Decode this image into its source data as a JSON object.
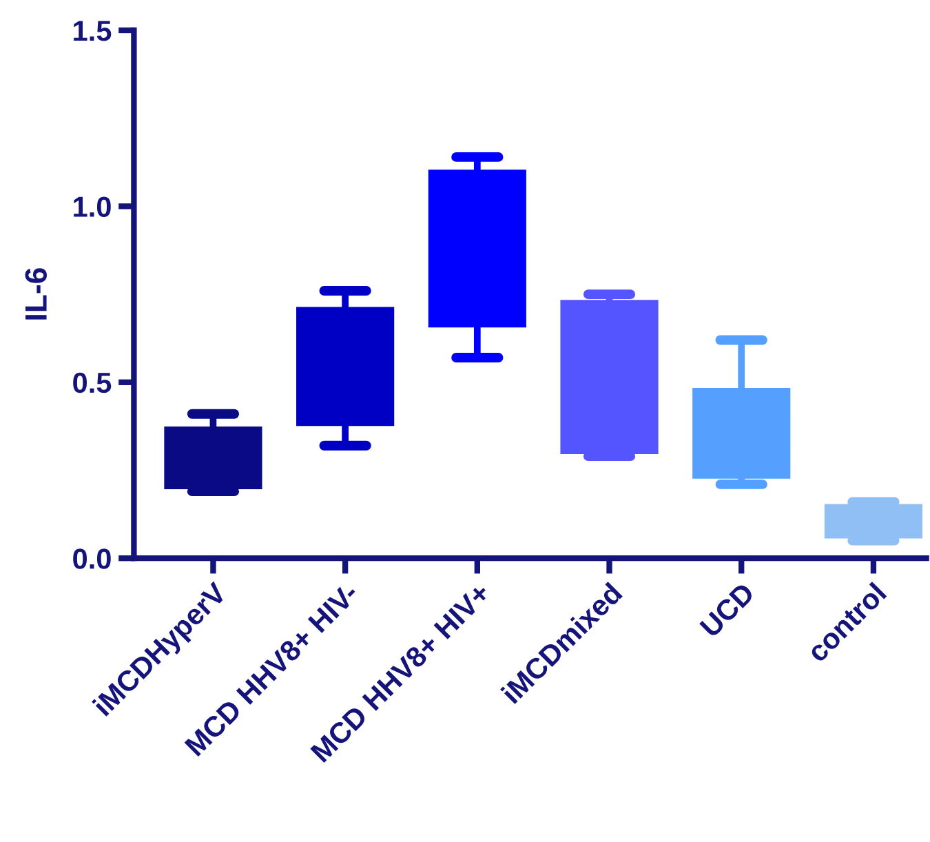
{
  "chart_data": {
    "type": "box",
    "ylabel": "IL-6",
    "categories": [
      "iMCDHyperV",
      "MCD HHV8+ HIV-",
      "MCD HHV8+ HIV+",
      "iMCDmixed",
      "UCD",
      "control"
    ],
    "colors": [
      "#0a0a85",
      "#0000c4",
      "#0000ff",
      "#5555ff",
      "#55a0ff",
      "#90bff5"
    ],
    "boxes": [
      {
        "low": 0.19,
        "q1": 0.2,
        "median": 0.28,
        "q3": 0.37,
        "high": 0.41
      },
      {
        "low": 0.32,
        "q1": 0.38,
        "median": 0.55,
        "q3": 0.71,
        "high": 0.76
      },
      {
        "low": 0.57,
        "q1": 0.66,
        "median": 0.88,
        "q3": 1.1,
        "high": 1.14
      },
      {
        "low": 0.29,
        "q1": 0.3,
        "median": 0.51,
        "q3": 0.73,
        "high": 0.75
      },
      {
        "low": 0.21,
        "q1": 0.23,
        "median": 0.36,
        "q3": 0.48,
        "high": 0.62
      },
      {
        "low": 0.05,
        "q1": 0.06,
        "median": 0.11,
        "q3": 0.15,
        "high": 0.16
      }
    ],
    "ylim": [
      0,
      1.5
    ],
    "yticks": [
      {
        "value": 0,
        "label": "0.0"
      },
      {
        "value": 0.5,
        "label": "0.5"
      },
      {
        "value": 1,
        "label": "1.0"
      },
      {
        "value": 1.5,
        "label": "1.5"
      }
    ],
    "grid": false,
    "legend": false
  }
}
